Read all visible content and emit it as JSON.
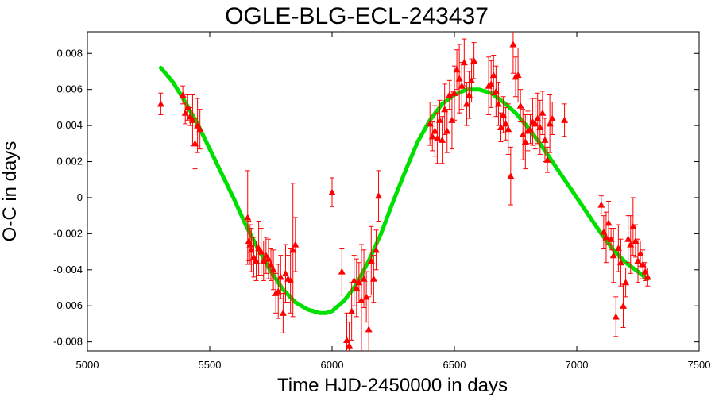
{
  "chart_data": {
    "type": "scatter",
    "title": "OGLE-BLG-ECL-243437",
    "xlabel": "Time HJD-2450000 in days",
    "ylabel": "O-C in days",
    "xlim": [
      5000,
      7500
    ],
    "ylim": [
      -0.0085,
      0.0092
    ],
    "xticks": [
      5000,
      5500,
      6000,
      6500,
      7000,
      7500
    ],
    "yticks": [
      -0.008,
      -0.006,
      -0.004,
      -0.002,
      0,
      0.002,
      0.004,
      0.006,
      0.008
    ],
    "ytick_labels": [
      "-0.008",
      "-0.006",
      "-0.004",
      "-0.002",
      "0",
      "0.002",
      "0.004",
      "0.006",
      "0.008"
    ],
    "grid": false,
    "colors": {
      "points": "#ff0000",
      "fit": "#00e000",
      "axes": "#000000"
    },
    "series": [
      {
        "kind": "points-with-errorbars",
        "marker": "triangle",
        "x": [
          5300,
          5390,
          5400,
          5410,
          5420,
          5430,
          5440,
          5450,
          5460,
          5655,
          5660,
          5665,
          5670,
          5680,
          5690,
          5700,
          5710,
          5720,
          5730,
          5740,
          5750,
          5760,
          5770,
          5780,
          5790,
          5800,
          5810,
          5820,
          5830,
          5840,
          5850,
          6000,
          6040,
          6060,
          6070,
          6080,
          6090,
          6100,
          6110,
          6120,
          6130,
          6140,
          6150,
          6160,
          6170,
          6180,
          6190,
          6400,
          6410,
          6420,
          6430,
          6440,
          6450,
          6460,
          6470,
          6480,
          6490,
          6500,
          6510,
          6520,
          6530,
          6540,
          6550,
          6560,
          6570,
          6580,
          6640,
          6650,
          6660,
          6670,
          6680,
          6690,
          6700,
          6710,
          6720,
          6730,
          6740,
          6750,
          6760,
          6770,
          6780,
          6790,
          6800,
          6810,
          6820,
          6830,
          6840,
          6850,
          6860,
          6870,
          6880,
          6890,
          6900,
          6950,
          7100,
          7110,
          7120,
          7130,
          7140,
          7150,
          7160,
          7170,
          7180,
          7190,
          7200,
          7210,
          7220,
          7230,
          7240,
          7250,
          7260,
          7270,
          7280,
          7290
        ],
        "y": [
          0.0052,
          0.0057,
          0.0047,
          0.005,
          0.0045,
          0.0043,
          0.003,
          0.004,
          0.0038,
          -0.0011,
          -0.0024,
          -0.0026,
          -0.0029,
          -0.0033,
          -0.0035,
          -0.0028,
          -0.003,
          -0.0035,
          -0.0032,
          -0.0034,
          -0.0037,
          -0.004,
          -0.0053,
          -0.0052,
          -0.0044,
          -0.0064,
          -0.0042,
          -0.0045,
          -0.0046,
          -0.0029,
          -0.0026,
          0.0003,
          -0.0041,
          -0.0079,
          -0.0082,
          -0.0063,
          -0.0046,
          -0.005,
          -0.0047,
          -0.0057,
          -0.0045,
          -0.0055,
          -0.0073,
          -0.0035,
          -0.0045,
          -0.0029,
          0.0001,
          0.0041,
          0.0034,
          0.0037,
          0.0033,
          0.0043,
          0.0032,
          0.0049,
          0.0037,
          0.0057,
          0.0043,
          0.0058,
          0.0071,
          0.0066,
          0.0062,
          0.0075,
          0.0052,
          0.0057,
          0.0065,
          0.0076,
          0.0062,
          0.0063,
          0.0068,
          0.0059,
          0.0052,
          0.0039,
          0.0046,
          0.0041,
          0.0038,
          0.0012,
          0.0085,
          0.0067,
          0.0068,
          0.0051,
          0.0035,
          0.0031,
          0.0037,
          0.0038,
          0.0042,
          0.0041,
          0.0044,
          0.0039,
          0.0047,
          0.0032,
          0.0021,
          0.0041,
          0.0044,
          0.0043,
          -0.0004,
          -0.0019,
          -0.0022,
          -0.0014,
          -0.0023,
          -0.0032,
          -0.0066,
          -0.0028,
          -0.0036,
          -0.006,
          -0.0047,
          -0.0023,
          -0.0026,
          -0.0016,
          -0.0024,
          -0.0035,
          -0.0031,
          -0.0037,
          -0.0041,
          -0.0044
        ],
        "err": [
          0.0006,
          0.0005,
          0.0006,
          0.0007,
          0.0005,
          0.0014,
          0.0014,
          0.0015,
          0.0011,
          0.0026,
          0.0011,
          0.0011,
          0.0012,
          0.0011,
          0.0011,
          0.0015,
          0.0013,
          0.0011,
          0.001,
          0.0011,
          0.0009,
          0.0011,
          0.0011,
          0.0015,
          0.0012,
          0.0011,
          0.0016,
          0.0013,
          0.0018,
          0.0037,
          0.0015,
          0.0008,
          0.0013,
          0.0015,
          0.0013,
          0.0016,
          0.0014,
          0.0016,
          0.0011,
          0.0031,
          0.0016,
          0.0014,
          0.0018,
          0.0019,
          0.0013,
          0.0011,
          0.0014,
          0.0012,
          0.0008,
          0.0014,
          0.0014,
          0.0011,
          0.0013,
          0.0014,
          0.0012,
          0.0008,
          0.0016,
          0.0015,
          0.0011,
          0.0019,
          0.0013,
          0.0013,
          0.0012,
          0.0013,
          0.0012,
          0.001,
          0.0016,
          0.0013,
          0.0011,
          0.0014,
          0.0012,
          0.0008,
          0.001,
          0.0009,
          0.0014,
          0.0016,
          0.0016,
          0.0011,
          0.0015,
          0.0009,
          0.0014,
          0.0015,
          0.0011,
          0.0008,
          0.0013,
          0.0014,
          0.0014,
          0.0015,
          0.0012,
          0.0012,
          0.0007,
          0.0016,
          0.0009,
          0.0009,
          0.0005,
          0.0009,
          0.0014,
          0.0012,
          0.0006,
          0.0015,
          0.0011,
          0.0013,
          0.0013,
          0.0012,
          0.0008,
          0.0013,
          0.0016,
          0.0016,
          0.0009,
          0.0012,
          0.0007,
          0.0008,
          0.0005,
          0.0005
        ]
      },
      {
        "kind": "fit-curve",
        "x": [
          5300,
          5350,
          5400,
          5450,
          5500,
          5550,
          5600,
          5650,
          5700,
          5750,
          5800,
          5850,
          5900,
          5950,
          5975,
          6000,
          6050,
          6100,
          6150,
          6200,
          6250,
          6300,
          6350,
          6400,
          6450,
          6500,
          6550,
          6600,
          6650,
          6700,
          6750,
          6800,
          6850,
          6900,
          6950,
          7000,
          7050,
          7100,
          7150,
          7200,
          7250,
          7290
        ],
        "y": [
          0.0072,
          0.0064,
          0.0053,
          0.0041,
          0.0027,
          0.0013,
          -0.0001,
          -0.0016,
          -0.0029,
          -0.0041,
          -0.0051,
          -0.0058,
          -0.0062,
          -0.0064,
          -0.0064,
          -0.0063,
          -0.0057,
          -0.0048,
          -0.0035,
          -0.002,
          -0.0002,
          0.0015,
          0.0031,
          0.0043,
          0.0052,
          0.0057,
          0.006,
          0.006,
          0.0058,
          0.0053,
          0.0047,
          0.0039,
          0.003,
          0.002,
          0.001,
          0.0,
          -0.001,
          -0.002,
          -0.0029,
          -0.0036,
          -0.0041,
          -0.0045
        ]
      }
    ]
  }
}
